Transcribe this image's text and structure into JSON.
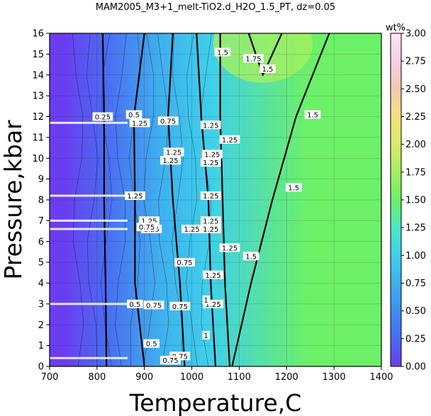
{
  "chart_data": {
    "type": "heatmap",
    "title": "MAM2005_M3+1_melt-TiO2.d_H2O_1.5_PT, dz=0.05",
    "xlabel": "Temperature,C",
    "ylabel": "Pressure,kbar",
    "xlim": [
      700,
      1400
    ],
    "ylim": [
      0,
      16
    ],
    "x_ticks": [
      "700",
      "800",
      "900",
      "1000",
      "1100",
      "1200",
      "1300",
      "1400"
    ],
    "y_ticks": [
      "0",
      "1",
      "2",
      "3",
      "4",
      "5",
      "6",
      "7",
      "8",
      "9",
      "10",
      "11",
      "12",
      "13",
      "14",
      "15",
      "16"
    ],
    "grid": true,
    "colorbar": {
      "label": "wt%",
      "range": [
        0.0,
        3.0
      ],
      "ticks": [
        "0.00",
        "0.25",
        "0.50",
        "0.75",
        "1.00",
        "1.25",
        "1.50",
        "1.75",
        "2.00",
        "2.25",
        "2.50",
        "2.75",
        "3.00"
      ],
      "colors": [
        "#6a3ef0",
        "#4a6cf2",
        "#3f8ef0",
        "#3fb0ee",
        "#3fd0ea",
        "#4fe6c8",
        "#6cf067",
        "#a4f060",
        "#d8ee66",
        "#f6e07c",
        "#f8c8b2",
        "#f8cee6",
        "#ffe6f6"
      ]
    },
    "regions": [
      {
        "value": 0.1,
        "T_range": [
          700,
          760
        ]
      },
      {
        "value": 0.35,
        "T_range": [
          760,
          880
        ]
      },
      {
        "value": 0.8,
        "T_range": [
          880,
          990
        ]
      },
      {
        "value": 1.1,
        "T_range": [
          990,
          1090
        ]
      },
      {
        "value": 1.55,
        "T_range": [
          1090,
          1400
        ]
      },
      {
        "value": 1.8,
        "center": [
          1150,
          15.5
        ]
      }
    ],
    "contours": [
      {
        "level": 0.25,
        "T": [
          820,
          818,
          815,
          815,
          812
        ],
        "P": [
          0,
          4,
          8,
          12,
          16
        ]
      },
      {
        "level": 0.5,
        "T": [
          900,
          880,
          880,
          878,
          900
        ],
        "P": [
          0,
          4,
          8,
          12,
          16
        ]
      },
      {
        "level": 0.75,
        "T": [
          985,
          975,
          960,
          950,
          960
        ],
        "P": [
          0,
          4,
          8,
          12,
          16
        ]
      },
      {
        "level": 1.0,
        "T": [
          1050,
          1040,
          1035,
          1020,
          1010
        ],
        "P": [
          0,
          4,
          8,
          12,
          16
        ]
      },
      {
        "level": 1.25,
        "T": [
          1080,
          1070,
          1065,
          1060,
          1060
        ],
        "P": [
          0,
          4,
          8,
          12,
          16
        ]
      },
      {
        "level": 1.5,
        "T": [
          1085,
          1125,
          1170,
          1220,
          1290
        ],
        "P": [
          0,
          4,
          8,
          12,
          16
        ]
      },
      {
        "level": 1.75,
        "T": [
          1120,
          1150,
          1190
        ],
        "P": [
          16,
          14,
          16
        ]
      }
    ],
    "labels": [
      {
        "text": "0.25",
        "T": 812,
        "P": 12.0
      },
      {
        "text": "0.5",
        "T": 878,
        "P": 12.1
      },
      {
        "text": "1.25",
        "T": 890,
        "P": 11.7
      },
      {
        "text": "0.75",
        "T": 950,
        "P": 11.8
      },
      {
        "text": "1.25",
        "T": 1040,
        "P": 11.6
      },
      {
        "text": "1.25",
        "T": 1080,
        "P": 10.9
      },
      {
        "text": "1.25",
        "T": 962,
        "P": 10.3
      },
      {
        "text": "1.25",
        "T": 1043,
        "P": 10.2
      },
      {
        "text": "1.25",
        "T": 955,
        "P": 9.9
      },
      {
        "text": "1.25",
        "T": 1040,
        "P": 9.8
      },
      {
        "text": "1.25",
        "T": 880,
        "P": 8.2
      },
      {
        "text": "1.25",
        "T": 1040,
        "P": 8.2
      },
      {
        "text": "1.25",
        "T": 910,
        "P": 7.0
      },
      {
        "text": "1.25",
        "T": 1040,
        "P": 7.0
      },
      {
        "text": "1.25",
        "T": 915,
        "P": 6.6
      },
      {
        "text": "1.25",
        "T": 1000,
        "P": 6.6
      },
      {
        "text": "1.25",
        "T": 1040,
        "P": 6.6
      },
      {
        "text": "0.75",
        "T": 905,
        "P": 6.7
      },
      {
        "text": "1.25",
        "T": 1080,
        "P": 5.7
      },
      {
        "text": "1.25",
        "T": 1045,
        "P": 4.4
      },
      {
        "text": "1.25",
        "T": 1045,
        "P": 3.0
      },
      {
        "text": "0.5",
        "T": 880,
        "P": 3.0
      },
      {
        "text": "0.75",
        "T": 920,
        "P": 2.95
      },
      {
        "text": "0.75",
        "T": 975,
        "P": 2.9
      },
      {
        "text": "0.5",
        "T": 915,
        "P": 1.1
      },
      {
        "text": "0.75",
        "T": 975,
        "P": 0.5
      },
      {
        "text": "0.75",
        "T": 955,
        "P": 0.3
      },
      {
        "text": "1.5",
        "T": 1160,
        "P": 14.3
      },
      {
        "text": "1.75",
        "T": 1130,
        "P": 14.8
      },
      {
        "text": "1.5",
        "T": 1255,
        "P": 12.1
      },
      {
        "text": "1.5",
        "T": 1215,
        "P": 8.6
      },
      {
        "text": "1.5",
        "T": 1125,
        "P": 5.3
      },
      {
        "text": "1.5",
        "T": 1065,
        "P": 15.1
      },
      {
        "text": "0.75",
        "T": 985,
        "P": 5.0
      },
      {
        "text": "1",
        "T": 1030,
        "P": 1.5
      },
      {
        "text": "1",
        "T": 1030,
        "P": 3.2
      }
    ]
  }
}
